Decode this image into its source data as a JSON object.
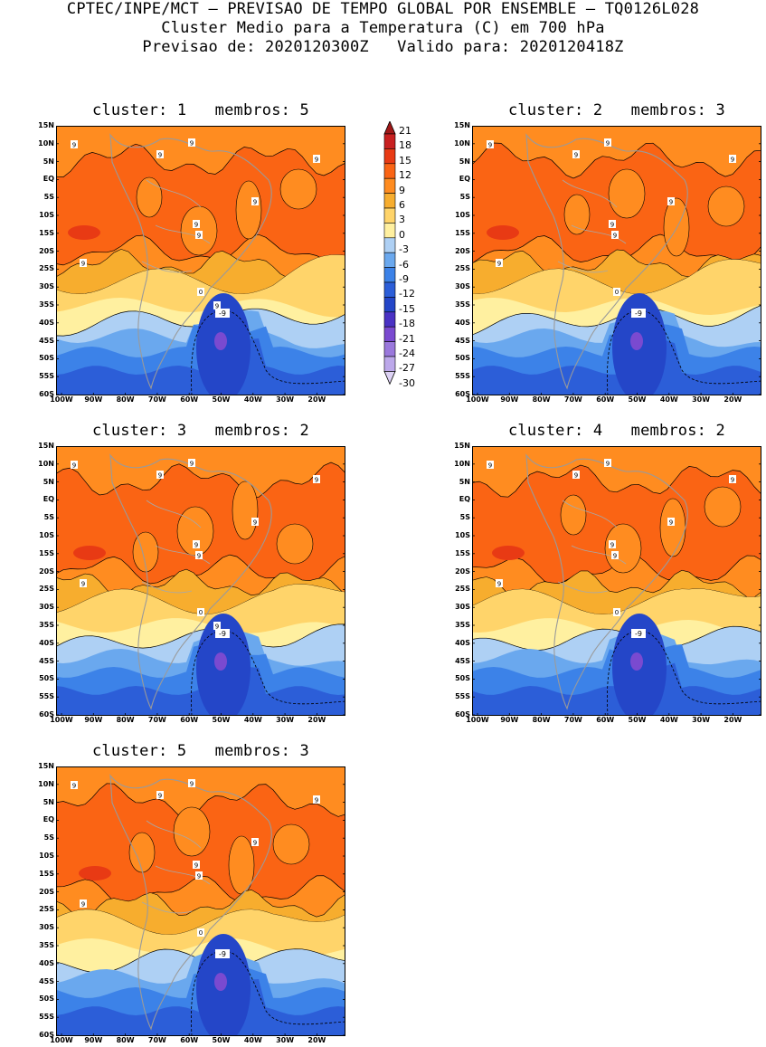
{
  "header": {
    "line1": "CPTEC/INPE/MCT – PREVISAO DE TEMPO GLOBAL POR ENSEMBLE – TQ0126L028",
    "line2": "Cluster Medio para a Temperatura (C) em 700 hPa",
    "line3": "Previsao de: 2020120300Z   Valido para: 2020120418Z"
  },
  "axes": {
    "lat_labels": [
      "15N",
      "10N",
      "5N",
      "EQ",
      "5S",
      "10S",
      "15S",
      "20S",
      "25S",
      "30S",
      "35S",
      "40S",
      "45S",
      "50S",
      "55S",
      "60S"
    ],
    "lon_labels": [
      "100W",
      "90W",
      "80W",
      "70W",
      "60W",
      "50W",
      "40W",
      "30W",
      "20W"
    ]
  },
  "colorbar": {
    "labels": [
      "21",
      "18",
      "15",
      "12",
      "9",
      "6",
      "3",
      "0",
      "-3",
      "-6",
      "-9",
      "-12",
      "-15",
      "-18",
      "-21",
      "-24",
      "-27",
      "-30"
    ],
    "colors": [
      "#a01818",
      "#c82020",
      "#e83a14",
      "#fa6414",
      "#ff8c20",
      "#f7ad2e",
      "#ffd46a",
      "#fff0a0",
      "#aed0f4",
      "#6aa8ee",
      "#3c82e8",
      "#2c5ed8",
      "#2446c8",
      "#4a32c4",
      "#7a4ad0",
      "#9a78dc",
      "#bca8ea",
      "#ddd2f4"
    ]
  },
  "panels": [
    {
      "id": "1",
      "title": "cluster: 1   membros: 5",
      "ninelabels": [
        "9",
        "9",
        "9",
        "9",
        "9",
        "9",
        "9",
        "9",
        "9"
      ],
      "zero_label": "0",
      "minus9_label": "-9",
      "seed": 1
    },
    {
      "id": "2",
      "title": "cluster: 2   membros: 3",
      "ninelabels": [
        "9",
        "9",
        "9",
        "9",
        "9",
        "9",
        "9",
        "9"
      ],
      "zero_label": "0",
      "minus9_label": "-9",
      "seed": 2
    },
    {
      "id": "3",
      "title": "cluster: 3   membros: 2",
      "ninelabels": [
        "9",
        "9",
        "9",
        "9",
        "9",
        "9",
        "9",
        "9",
        "9"
      ],
      "zero_label": "0",
      "minus9_label": "-9",
      "seed": 3
    },
    {
      "id": "4",
      "title": "cluster: 4   membros: 2",
      "ninelabels": [
        "9",
        "9",
        "9",
        "9",
        "9",
        "9",
        "9",
        "9"
      ],
      "zero_label": "0",
      "minus9_label": "-9",
      "seed": 4
    },
    {
      "id": "5",
      "title": "cluster: 5   membros: 3",
      "ninelabels": [
        "9",
        "9",
        "9",
        "9",
        "9",
        "9",
        "9",
        "9"
      ],
      "zero_label": "0",
      "minus9_label": "-9",
      "seed": 5
    }
  ]
}
